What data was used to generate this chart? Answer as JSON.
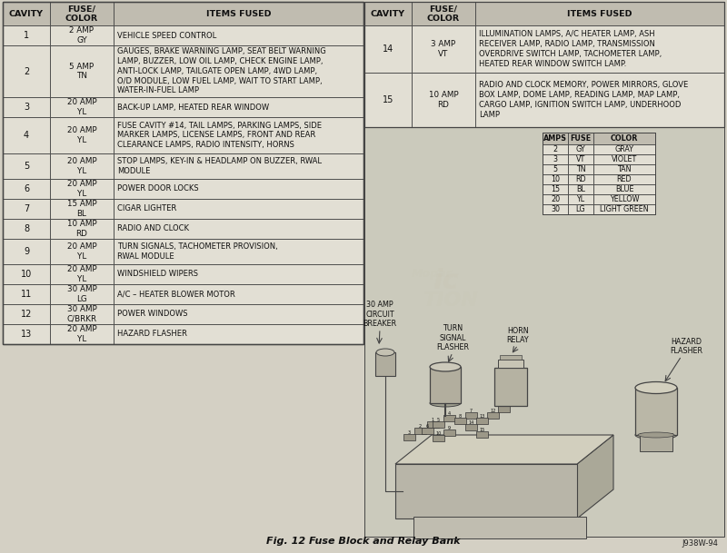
{
  "title": "Fig. 12 Fuse Block and Relay Bank",
  "title_ref": "J938W-94",
  "bg_color": "#d4d0c4",
  "table_bg": "#e2dfd4",
  "header_bg": "#c0bcb0",
  "border_color": "#444444",
  "text_color": "#111111",
  "left_rows": [
    [
      "1",
      "2 AMP\nGY",
      "VEHICLE SPEED CONTROL"
    ],
    [
      "2",
      "5 AMP\nTN",
      "GAUGES, BRAKE WARNING LAMP, SEAT BELT WARNING\nLAMP, BUZZER, LOW OIL LAMP, CHECK ENGINE LAMP,\nANTI-LOCK LAMP, TAILGATE OPEN LAMP, 4WD LAMP,\nO/D MODULE, LOW FUEL LAMP, WAIT TO START LAMP,\nWATER-IN-FUEL LAMP"
    ],
    [
      "3",
      "20 AMP\nYL",
      "BACK-UP LAMP, HEATED REAR WINDOW"
    ],
    [
      "4",
      "20 AMP\nYL",
      "FUSE CAVITY #14, TAIL LAMPS, PARKING LAMPS, SIDE\nMARKER LAMPS, LICENSE LAMPS, FRONT AND REAR\nCLEARANCE LAMPS, RADIO INTENSITY, HORNS"
    ],
    [
      "5",
      "20 AMP\nYL",
      "STOP LAMPS, KEY-IN & HEADLAMP ON BUZZER, RWAL\nMODULE"
    ],
    [
      "6",
      "20 AMP\nYL",
      "POWER DOOR LOCKS"
    ],
    [
      "7",
      "15 AMP\nBL",
      "CIGAR LIGHTER"
    ],
    [
      "8",
      "10 AMP\nRD",
      "RADIO AND CLOCK"
    ],
    [
      "9",
      "20 AMP\nYL",
      "TURN SIGNALS, TACHOMETER PROVISION,\nRWAL MODULE"
    ],
    [
      "10",
      "20 AMP\nYL",
      "WINDSHIELD WIPERS"
    ],
    [
      "11",
      "30 AMP\nLG",
      "A/C – HEATER BLOWER MOTOR"
    ],
    [
      "12",
      "30 AMP\nC/BRKR",
      "POWER WINDOWS"
    ],
    [
      "13",
      "20 AMP\nYL",
      "HAZARD FLASHER"
    ]
  ],
  "right_rows": [
    [
      "14",
      "3 AMP\nVT",
      "ILLUMINATION LAMPS, A/C HEATER LAMP, ASH\nRECEIVER LAMP, RADIO LAMP, TRANSMISSION\nOVERDRIVE SWITCH LAMP, TACHOMETER LAMP,\nHEATED REAR WINDOW SWITCH LAMP."
    ],
    [
      "15",
      "10 AMP\nRD",
      "RADIO AND CLOCK MEMORY, POWER MIRRORS, GLOVE\nBOX LAMP, DOME LAMP, READING LAMP, MAP LAMP,\nCARGO LAMP, IGNITION SWITCH LAMP, UNDERHOOD\nLAMP"
    ]
  ],
  "color_table_headers": [
    "AMPS",
    "FUSE",
    "COLOR"
  ],
  "color_table_rows": [
    [
      "2",
      "GY",
      "GRAY"
    ],
    [
      "3",
      "VT",
      "VIOLET"
    ],
    [
      "5",
      "TN",
      "TAN"
    ],
    [
      "10",
      "RD",
      "RED"
    ],
    [
      "15",
      "BL",
      "BLUE"
    ],
    [
      "20",
      "YL",
      "YELLOW"
    ],
    [
      "30",
      "LG",
      "LIGHT GREEN"
    ]
  ],
  "labels": {
    "turn_signal": "TURN\nSIGNAL\nFLASHER",
    "circuit_breaker": "30 AMP\nCIRCUIT\nBREAKER",
    "horn_relay": "HORN\nRELAY",
    "hazard_flasher": "HAZARD\nFLASHER"
  }
}
